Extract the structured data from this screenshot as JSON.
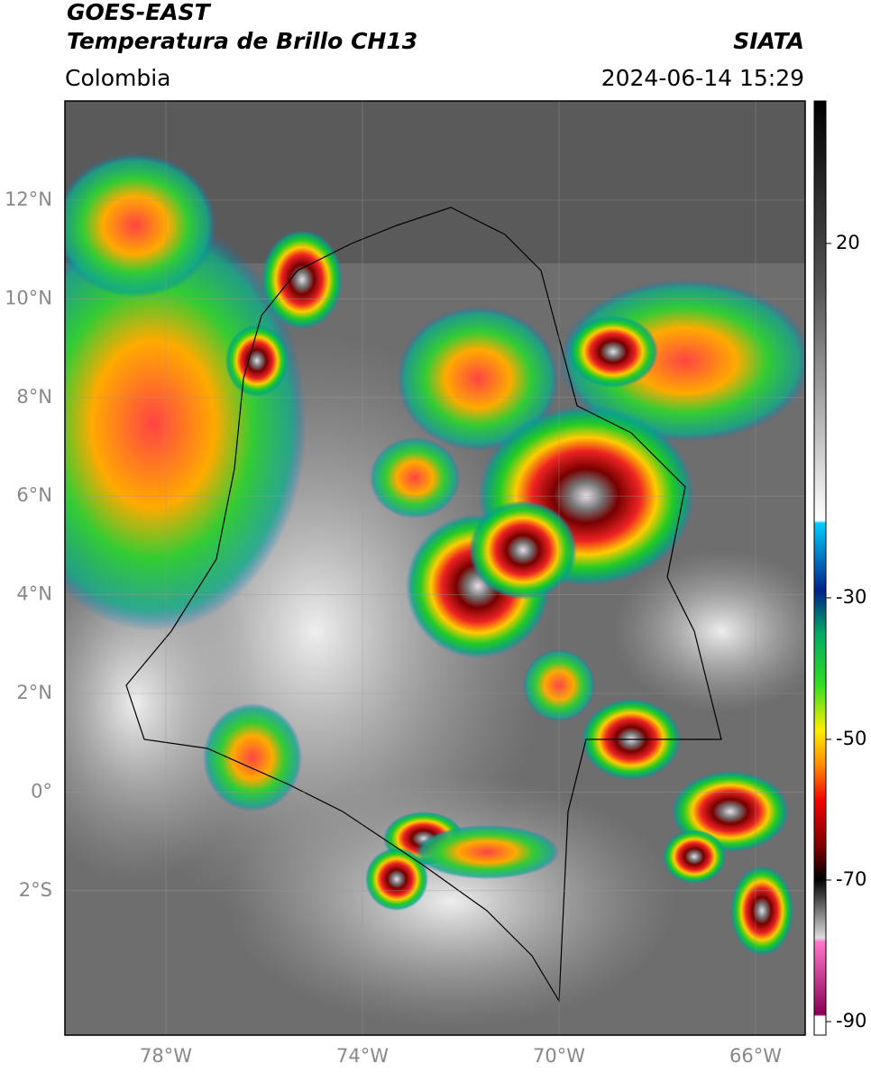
{
  "header": {
    "title": "GOES-EAST",
    "subtitle": "Temperatura de Brillo CH13",
    "region": "Colombia",
    "source": "SIATA",
    "datetime": "2024-06-14 15:29"
  },
  "map": {
    "lat_labels": [
      "12°N",
      "10°N",
      "8°N",
      "6°N",
      "4°N",
      "2°N",
      "0°",
      "2°S"
    ],
    "lon_labels": [
      "78°W",
      "74°W",
      "70°W",
      "66°W"
    ]
  },
  "colorbar": {
    "ticks": [
      20,
      -30,
      -50,
      -70,
      -90
    ]
  }
}
